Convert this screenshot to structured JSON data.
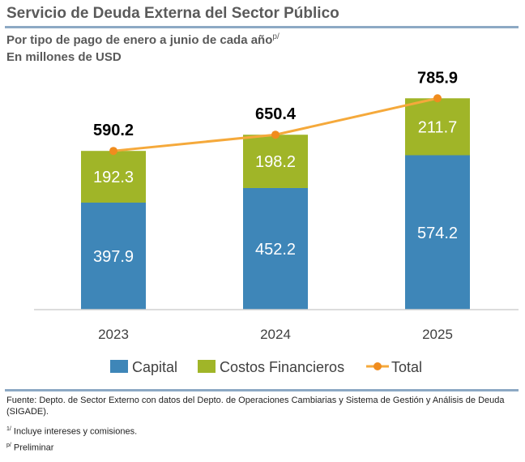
{
  "header": {
    "title": "Servicio de Deuda Externa del Sector Público",
    "subtitle": "Por tipo de pago de enero a junio de cada año",
    "subtitle_sup": "p/",
    "units": "En millones de USD"
  },
  "chart_data": {
    "type": "bar",
    "stacked": true,
    "categories": [
      "2023",
      "2024",
      "2025"
    ],
    "series": [
      {
        "name": "Capital",
        "values": [
          397.9,
          452.2,
          574.2
        ],
        "color": "#3e86b8"
      },
      {
        "name": "Costos Financieros",
        "values": [
          192.3,
          198.2,
          211.7
        ],
        "color": "#a0b528"
      }
    ],
    "line_series": {
      "name": "Total",
      "values": [
        590.2,
        650.4,
        785.9
      ],
      "color": "#f5a93b",
      "marker_color": "#f08c1e"
    },
    "ylim": [
      0,
      850
    ],
    "grid": false,
    "legend": "bottom",
    "legend_labels": [
      "Capital",
      "Costos Financieros",
      "Total"
    ]
  },
  "footer": {
    "source": "Fuente: Depto. de Sector Externo con datos del Depto. de Operaciones Cambiarias y Sistema de Gestión y Análisis de Deuda (SIGADE).",
    "note1_sup": "1/",
    "note1": " Incluye intereses y comisiones.",
    "note2_sup": "p/",
    "note2": " Preliminar"
  }
}
